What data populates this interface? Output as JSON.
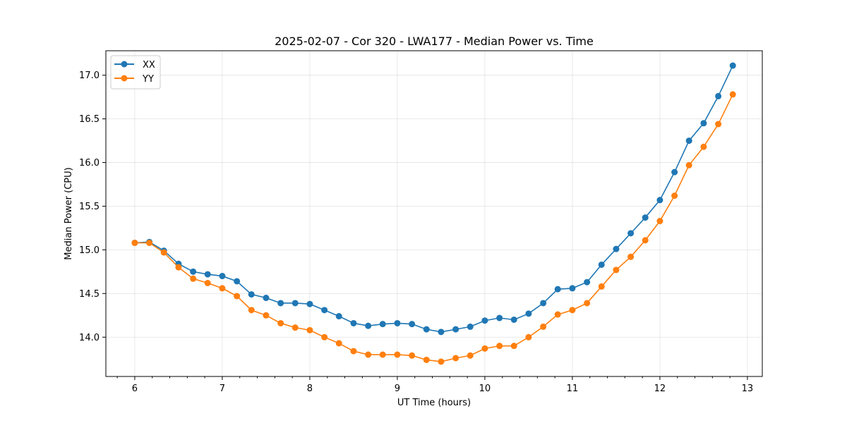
{
  "chart_data": {
    "type": "line",
    "title": "2025-02-07 - Cor 320 - LWA177 - Median Power vs. Time",
    "xlabel": "UT Time (hours)",
    "ylabel": "Median Power (CPU)",
    "xlim": [
      5.67,
      13.17
    ],
    "ylim": [
      13.55,
      17.28
    ],
    "xticks": [
      6,
      7,
      8,
      9,
      10,
      11,
      12,
      13
    ],
    "xtick_labels": [
      "6",
      "7",
      "8",
      "9",
      "10",
      "11",
      "12",
      "13"
    ],
    "yticks": [
      14.0,
      14.5,
      15.0,
      15.5,
      16.0,
      16.5,
      17.0
    ],
    "ytick_labels": [
      "14.0",
      "14.5",
      "15.0",
      "15.5",
      "16.0",
      "16.5",
      "17.0"
    ],
    "grid": true,
    "legend_position": "top-left",
    "x": [
      6.0,
      6.167,
      6.333,
      6.5,
      6.667,
      6.833,
      7.0,
      7.167,
      7.333,
      7.5,
      7.667,
      7.833,
      8.0,
      8.167,
      8.333,
      8.5,
      8.667,
      8.833,
      9.0,
      9.167,
      9.333,
      9.5,
      9.667,
      9.833,
      10.0,
      10.167,
      10.333,
      10.5,
      10.667,
      10.833,
      11.0,
      11.167,
      11.333,
      11.5,
      11.667,
      11.833,
      12.0,
      12.167,
      12.333,
      12.5,
      12.667,
      12.833
    ],
    "series": [
      {
        "name": "XX",
        "color": "#1f77b4",
        "values": [
          15.08,
          15.09,
          14.99,
          14.84,
          14.75,
          14.72,
          14.7,
          14.64,
          14.49,
          14.45,
          14.39,
          14.39,
          14.38,
          14.31,
          14.24,
          14.16,
          14.13,
          14.15,
          14.16,
          14.15,
          14.09,
          14.06,
          14.09,
          14.12,
          14.19,
          14.22,
          14.2,
          14.27,
          14.39,
          14.55,
          14.56,
          14.63,
          14.83,
          15.01,
          15.19,
          15.37,
          15.57,
          15.89,
          16.25,
          16.45,
          16.76,
          17.11
        ]
      },
      {
        "name": "YY",
        "color": "#ff7f0e",
        "values": [
          15.08,
          15.08,
          14.97,
          14.8,
          14.67,
          14.62,
          14.56,
          14.47,
          14.31,
          14.25,
          14.16,
          14.11,
          14.08,
          14.0,
          13.93,
          13.84,
          13.8,
          13.8,
          13.8,
          13.79,
          13.74,
          13.72,
          13.76,
          13.79,
          13.87,
          13.9,
          13.9,
          14.0,
          14.12,
          14.26,
          14.31,
          14.39,
          14.58,
          14.77,
          14.92,
          15.11,
          15.33,
          15.62,
          15.97,
          16.18,
          16.44,
          16.78
        ]
      }
    ]
  }
}
